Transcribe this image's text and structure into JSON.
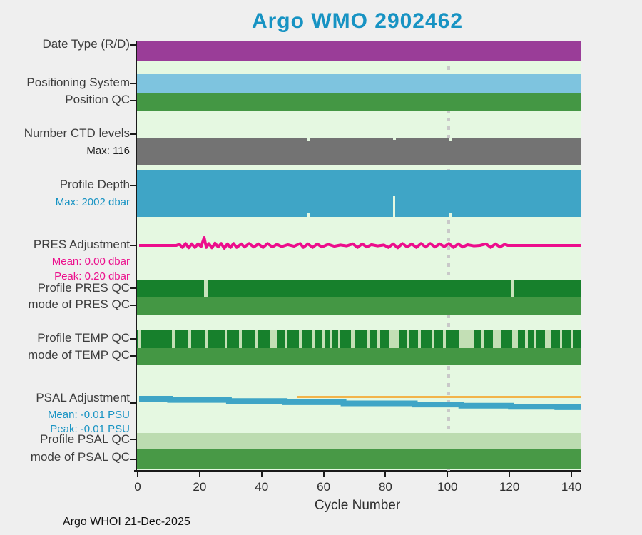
{
  "title": {
    "text": "Argo WMO 2902462"
  },
  "footer": {
    "text": "Argo WHOI 21-Dec-2025"
  },
  "xaxis": {
    "label": "Cycle Number",
    "ticks": [
      0,
      20,
      40,
      60,
      80,
      100,
      120,
      140
    ]
  },
  "labels": {
    "date_type": "Date Type (R/D)",
    "positioning": "Positioning System",
    "position_qc": "Position QC",
    "ctd_levels": "Number CTD levels",
    "ctd_max": "Max: 116",
    "profile_depth": "Profile Depth",
    "depth_max": "Max: 2002 dbar",
    "pres_adj": "PRES Adjustment",
    "pres_mean": "Mean: 0.00 dbar",
    "pres_peak": "Peak: 0.20 dbar",
    "profile_pres_qc": "Profile PRES QC",
    "mode_pres_qc": "mode of PRES QC",
    "profile_temp_qc": "Profile TEMP QC",
    "mode_temp_qc": "mode of TEMP QC",
    "psal_adj": "PSAL Adjustment",
    "psal_mean": "Mean: -0.01 PSU",
    "psal_peak": "Peak: -0.01 PSU",
    "profile_psal_qc": "Profile PSAL QC",
    "mode_psal_qc": "mode of PSAL QC"
  },
  "colors": {
    "title": "#1793c3",
    "plot_bg": "#e5f8e1",
    "page_bg": "#efefef",
    "marker_dash": "#c9c9c9",
    "axis": "#1a1a1a"
  },
  "chart_data": {
    "type": "status-bars",
    "title": "Argo WMO 2902462",
    "xlabel": "Cycle Number",
    "x_range": [
      0,
      142.6
    ],
    "x_ticks": [
      0,
      20,
      40,
      60,
      80,
      100,
      120,
      140
    ],
    "marker_cycle": 100,
    "grid": false,
    "rows": [
      {
        "id": "date_type",
        "name": "Date Type (R/D)",
        "kind": "bar",
        "color": "#9a3d98",
        "coverage": "all cycles"
      },
      {
        "id": "positioning",
        "name": "Positioning System",
        "kind": "bar",
        "color": "#7ec4df",
        "coverage": "all cycles"
      },
      {
        "id": "position_qc",
        "name": "Position QC",
        "kind": "bar",
        "color": "#449744",
        "coverage": "all cycles"
      },
      {
        "id": "ctd_levels",
        "name": "Number CTD levels",
        "kind": "bar",
        "color": "#737373",
        "max_value": 116,
        "top_dips": [
          [
            54,
            1.2,
            3
          ],
          [
            82,
            1.0,
            2
          ],
          [
            100,
            1.0,
            3
          ]
        ]
      },
      {
        "id": "profile_depth",
        "name": "Profile Depth",
        "kind": "bar",
        "color": "#3fa5c6",
        "max_value_label": "2002 dbar",
        "bottom_notches": [
          [
            54,
            1.0,
            5
          ],
          [
            82,
            0.7,
            29
          ],
          [
            100,
            1.0,
            6
          ]
        ]
      },
      {
        "id": "pres_adj",
        "name": "PRES Adjustment",
        "kind": "line",
        "color": "#ec0e8c",
        "stroke": 4,
        "unit": "dbar",
        "mean_label": "0.00 dbar",
        "peak_label": "0.20 dbar",
        "points": [
          [
            0,
            0
          ],
          [
            12,
            0
          ],
          [
            13,
            0.03
          ],
          [
            14,
            -0.05
          ],
          [
            15,
            0.05
          ],
          [
            16,
            -0.06
          ],
          [
            17,
            0.04
          ],
          [
            18,
            -0.05
          ],
          [
            19,
            0.04
          ],
          [
            20,
            -0.03
          ],
          [
            21,
            0.2
          ],
          [
            21.7,
            -0.05
          ],
          [
            22.5,
            0.05
          ],
          [
            23.5,
            -0.06
          ],
          [
            24.5,
            0.06
          ],
          [
            25.5,
            -0.04
          ],
          [
            26.5,
            0.05
          ],
          [
            27.5,
            -0.07
          ],
          [
            28.5,
            0.04
          ],
          [
            29.5,
            -0.05
          ],
          [
            30.5,
            0.05
          ],
          [
            31.5,
            -0.05
          ],
          [
            33,
            0.04
          ],
          [
            34,
            -0.04
          ],
          [
            35.5,
            0.05
          ],
          [
            37,
            -0.04
          ],
          [
            38.5,
            0.04
          ],
          [
            40,
            -0.05
          ],
          [
            41.5,
            0.05
          ],
          [
            43,
            -0.04
          ],
          [
            44.5,
            0.03
          ],
          [
            46,
            -0.03
          ],
          [
            48,
            0.02
          ],
          [
            50,
            -0.02
          ],
          [
            52,
            0.05
          ],
          [
            53,
            -0.05
          ],
          [
            54.5,
            0.04
          ],
          [
            56,
            -0.05
          ],
          [
            57.5,
            0.04
          ],
          [
            59,
            -0.04
          ],
          [
            61,
            0.03
          ],
          [
            63,
            -0.02
          ],
          [
            65,
            0.01
          ],
          [
            67,
            -0.01
          ],
          [
            69,
            0.04
          ],
          [
            70.5,
            -0.05
          ],
          [
            72,
            0.04
          ],
          [
            73.5,
            -0.04
          ],
          [
            75,
            0.02
          ],
          [
            77,
            -0.01
          ],
          [
            79,
            0.01
          ],
          [
            80.5,
            -0.05
          ],
          [
            82,
            0.04
          ],
          [
            83.5,
            -0.06
          ],
          [
            85,
            0.05
          ],
          [
            86.5,
            -0.04
          ],
          [
            88,
            0.04
          ],
          [
            89.5,
            -0.05
          ],
          [
            91,
            0.05
          ],
          [
            92.5,
            -0.04
          ],
          [
            94,
            0.05
          ],
          [
            95.5,
            -0.04
          ],
          [
            97,
            0.04
          ],
          [
            98.5,
            -0.03
          ],
          [
            100,
            0.05
          ],
          [
            101.5,
            -0.05
          ],
          [
            103,
            0.04
          ],
          [
            104.5,
            -0.04
          ],
          [
            106,
            0.02
          ],
          [
            108,
            -0.01
          ],
          [
            110,
            0
          ],
          [
            112,
            0.04
          ],
          [
            113.5,
            -0.05
          ],
          [
            115,
            0.04
          ],
          [
            116.5,
            -0.04
          ],
          [
            118,
            0.03
          ],
          [
            119,
            0
          ],
          [
            142.6,
            0
          ]
        ]
      },
      {
        "id": "profile_pres_qc",
        "name": "Profile PRES QC",
        "kind": "bar",
        "color": "#17802c",
        "gap_color": "#c9e3bc",
        "gaps": [
          [
            21,
            1.0
          ],
          [
            120,
            1.2
          ]
        ]
      },
      {
        "id": "mode_pres_qc",
        "name": "mode of PRES QC",
        "kind": "bar",
        "color": "#449744"
      },
      {
        "id": "profile_temp_qc",
        "name": "Profile TEMP QC",
        "kind": "bar",
        "color": "#17802c",
        "stripe_color": "#c3dfb5",
        "stripes": [
          [
            0.002,
            0.008
          ],
          [
            0.079,
            0.007
          ],
          [
            0.116,
            0.006
          ],
          [
            0.154,
            0.007
          ],
          [
            0.197,
            0.006
          ],
          [
            0.23,
            0.007
          ],
          [
            0.267,
            0.006
          ],
          [
            0.301,
            0.016
          ],
          [
            0.333,
            0.006
          ],
          [
            0.365,
            0.006
          ],
          [
            0.396,
            0.006
          ],
          [
            0.417,
            0.006
          ],
          [
            0.435,
            0.005
          ],
          [
            0.454,
            0.005
          ],
          [
            0.482,
            0.008
          ],
          [
            0.518,
            0.007
          ],
          [
            0.542,
            0.006
          ],
          [
            0.568,
            0.023
          ],
          [
            0.608,
            0.005
          ],
          [
            0.634,
            0.006
          ],
          [
            0.664,
            0.005
          ],
          [
            0.689,
            0.007
          ],
          [
            0.727,
            0.034
          ],
          [
            0.775,
            0.006
          ],
          [
            0.802,
            0.018
          ],
          [
            0.846,
            0.013
          ],
          [
            0.875,
            0.006
          ],
          [
            0.896,
            0.005
          ],
          [
            0.919,
            0.013
          ],
          [
            0.953,
            0.006
          ],
          [
            0.977,
            0.005
          ]
        ]
      },
      {
        "id": "mode_temp_qc",
        "name": "mode of TEMP QC",
        "kind": "bar",
        "color": "#449744"
      },
      {
        "id": "psal_adj",
        "name": "PSAL Adjustment",
        "kind": "steps",
        "color": "#3fa5c6",
        "stroke": 8,
        "unit": "PSU",
        "mean_label": "-0.01 PSU",
        "peak_label": "-0.01 PSU",
        "steps": [
          [
            0,
            0
          ],
          [
            10,
            -0.0015
          ],
          [
            29,
            -0.003
          ],
          [
            47,
            -0.0045
          ],
          [
            66,
            -0.006
          ],
          [
            89,
            -0.0075
          ],
          [
            104,
            -0.009
          ],
          [
            120,
            -0.0105
          ],
          [
            135,
            -0.011
          ],
          [
            142.6,
            -0.011
          ]
        ],
        "overlay": {
          "color": "#f2b44a",
          "from_cycle": 51,
          "value": 0,
          "stroke": 3
        }
      },
      {
        "id": "profile_psal_qc",
        "name": "Profile PSAL QC",
        "kind": "bar",
        "color": "#bcdcb0"
      },
      {
        "id": "mode_psal_qc",
        "name": "mode of PSAL QC",
        "kind": "bar",
        "color": "#489946"
      }
    ]
  }
}
